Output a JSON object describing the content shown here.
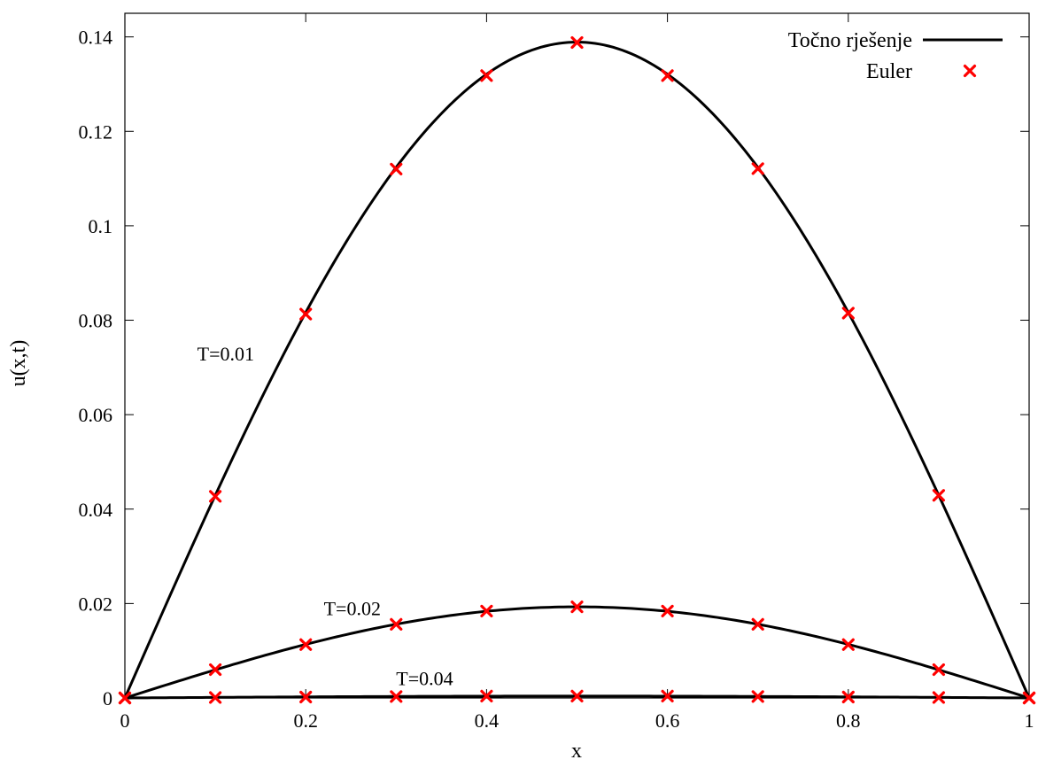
{
  "chart_data": {
    "type": "line",
    "title": "",
    "xlabel": "x",
    "ylabel": "u(x,t)",
    "xlim": [
      0,
      1
    ],
    "ylim": [
      0,
      0.145
    ],
    "x_ticks": [
      0,
      0.2,
      0.4,
      0.6,
      0.8,
      1
    ],
    "x_tick_labels": [
      "0",
      "0.2",
      "0.4",
      "0.6",
      "0.8",
      "1"
    ],
    "y_ticks": [
      0,
      0.02,
      0.04,
      0.06,
      0.08,
      0.1,
      0.12,
      0.14
    ],
    "y_tick_labels": [
      "0",
      "0.02",
      "0.04",
      "0.06",
      "0.08",
      "0.1",
      "0.12",
      "0.14"
    ],
    "grid": false,
    "legend_position": "top-right",
    "legend": [
      {
        "label": "Točno rješenje",
        "style": "line",
        "color": "#000000"
      },
      {
        "label": "Euler",
        "style": "cross",
        "color": "#ff0000"
      }
    ],
    "curves": [
      {
        "label": "T=0.01",
        "amplitude": 0.1389,
        "label_x": 0.08,
        "label_y": 0.0715
      },
      {
        "label": "T=0.02",
        "amplitude": 0.0193,
        "label_x": 0.22,
        "label_y": 0.0175
      },
      {
        "label": "T=0.04",
        "amplitude": 0.0004,
        "label_x": 0.3,
        "label_y": 0.0027
      }
    ],
    "euler_x": [
      0,
      0.1,
      0.2,
      0.3,
      0.4,
      0.5,
      0.6,
      0.7,
      0.8,
      0.9,
      1
    ],
    "euler_series": [
      {
        "curve": "T=0.01",
        "y": [
          0,
          0.0427,
          0.0813,
          0.112,
          0.1318,
          0.1388,
          0.1318,
          0.1121,
          0.0815,
          0.0429,
          0
        ]
      },
      {
        "curve": "T=0.02",
        "y": [
          0,
          0.006,
          0.0113,
          0.0156,
          0.0184,
          0.0193,
          0.0184,
          0.0156,
          0.0113,
          0.006,
          0
        ]
      },
      {
        "curve": "T=0.04",
        "y": [
          0,
          0.0001,
          0.0002,
          0.0003,
          0.0004,
          0.0004,
          0.0004,
          0.0003,
          0.0002,
          0.0001,
          0
        ]
      }
    ],
    "colors": {
      "exact": "#000000",
      "euler": "#ff0000"
    }
  }
}
